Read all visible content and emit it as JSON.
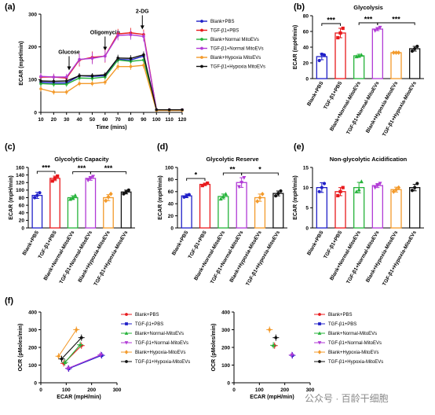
{
  "colors": {
    "blank_pbs": "#2020c8",
    "tgf_pbs": "#e8191c",
    "blank_normal": "#25b33a",
    "tgf_normal": "#b13ad6",
    "blank_hypoxia": "#f39a2b",
    "tgf_hypoxia": "#111111"
  },
  "watermark": "公众号 · 百龄干细胞",
  "chart_data": [
    {
      "id": "a",
      "panel": "(a)",
      "type": "line",
      "xlabel": "Time (mins)",
      "ylabel": "ECAR (mpH/min)",
      "xlim": [
        10,
        120
      ],
      "ylim": [
        0,
        300
      ],
      "xticks": [
        10,
        20,
        30,
        40,
        50,
        60,
        70,
        80,
        90,
        100,
        110,
        120
      ],
      "yticks": [
        0,
        100,
        200,
        300
      ],
      "x": [
        10,
        20,
        30,
        40,
        50,
        60,
        70,
        80,
        90,
        100,
        110,
        120
      ],
      "annotations": [
        {
          "text": "Glucose",
          "x": 32,
          "y": 150
        },
        {
          "text": "Oligomycin",
          "x": 60,
          "y": 210
        },
        {
          "text": "2-DG",
          "x": 89,
          "y": 275
        }
      ],
      "series": [
        {
          "name": "Blank+PBS",
          "color": "#2020c8",
          "values": [
            92,
            90,
            90,
            112,
            110,
            112,
            162,
            160,
            172,
            8,
            8,
            8
          ],
          "err": [
            8,
            8,
            8,
            8,
            8,
            8,
            10,
            10,
            10,
            3,
            3,
            3
          ]
        },
        {
          "name": "TGF-β1+PBS",
          "color": "#e8191c",
          "values": [
            108,
            108,
            105,
            160,
            168,
            172,
            240,
            243,
            238,
            8,
            8,
            8
          ],
          "err": [
            10,
            10,
            10,
            20,
            18,
            20,
            15,
            15,
            15,
            3,
            3,
            3
          ]
        },
        {
          "name": "Blank+Normal MitoEVs",
          "color": "#25b33a",
          "values": [
            88,
            86,
            86,
            105,
            104,
            108,
            160,
            156,
            160,
            7,
            7,
            7
          ],
          "err": [
            8,
            8,
            8,
            8,
            8,
            8,
            10,
            10,
            10,
            3,
            3,
            3
          ]
        },
        {
          "name": "TGF-β1+Normal MitoEVs",
          "color": "#b13ad6",
          "values": [
            110,
            108,
            108,
            162,
            165,
            172,
            235,
            237,
            232,
            8,
            8,
            8
          ],
          "err": [
            10,
            10,
            10,
            18,
            18,
            18,
            15,
            15,
            15,
            3,
            3,
            3
          ]
        },
        {
          "name": "Blank+Hypoxia MitoEVs",
          "color": "#f39a2b",
          "values": [
            72,
            62,
            62,
            88,
            88,
            92,
            140,
            140,
            144,
            6,
            6,
            6
          ],
          "err": [
            8,
            8,
            8,
            8,
            8,
            8,
            10,
            10,
            10,
            3,
            3,
            3
          ]
        },
        {
          "name": "TGF-β1+Hypoxia MitoEVs",
          "color": "#111111",
          "values": [
            96,
            95,
            96,
            112,
            112,
            115,
            166,
            165,
            176,
            8,
            8,
            8
          ],
          "err": [
            8,
            8,
            8,
            8,
            8,
            8,
            10,
            10,
            10,
            3,
            3,
            3
          ]
        }
      ]
    },
    {
      "id": "b",
      "panel": "(b)",
      "type": "bar",
      "title": "Glycolysis",
      "ylabel": "ECAR (mpH/min)",
      "ylim": [
        0,
        80
      ],
      "yticks": [
        0,
        20,
        40,
        60,
        80
      ],
      "categories": [
        "Blank+PBS",
        "TGF-β1+PBS",
        "Blank+Normal-MitoEVs",
        "TGF-β1+Normal-MitoEVs",
        "Blank+Hypoxia-MitoEVs",
        "TGF-β1+Hypoxia-MitoEVs"
      ],
      "values": [
        28,
        58,
        29,
        63,
        33,
        38
      ],
      "err": [
        4,
        6,
        2,
        2,
        0.5,
        3
      ],
      "points": [
        [
          23,
          31,
          30
        ],
        [
          52,
          58,
          64
        ],
        [
          28,
          29,
          30
        ],
        [
          61,
          63,
          65
        ],
        [
          33,
          33,
          33
        ],
        [
          35,
          38,
          41
        ]
      ],
      "significance": [
        {
          "from": 0,
          "to": 1,
          "label": "***"
        },
        {
          "from": 2,
          "to": 3,
          "label": "***"
        },
        {
          "from": 3,
          "to": 5,
          "label": "***"
        }
      ]
    },
    {
      "id": "c",
      "panel": "(c)",
      "type": "bar",
      "title": "Glycolytic Capacity",
      "ylabel": "ECAR (mpH/min)",
      "ylim": [
        0,
        160
      ],
      "yticks": [
        0,
        20,
        40,
        60,
        80,
        100,
        120,
        140,
        160
      ],
      "categories": [
        "Blank+PBS",
        "TGF-β1+PBS",
        "Blank+Normal-MitoEVs",
        "TGF-β1+Normal-MitoEVs",
        "Blank+Hypoxia-MitoEVs",
        "TGF-β1+Hypoxia-MitoEVs"
      ],
      "values": [
        86,
        131,
        80,
        131,
        80,
        95
      ],
      "err": [
        8,
        6,
        5,
        5,
        8,
        5
      ],
      "points": [
        [
          80,
          86,
          93
        ],
        [
          124,
          131,
          137
        ],
        [
          76,
          80,
          86
        ],
        [
          126,
          131,
          136
        ],
        [
          72,
          82,
          90
        ],
        [
          90,
          95,
          100
        ]
      ],
      "significance": [
        {
          "from": 0,
          "to": 1,
          "label": "***"
        },
        {
          "from": 2,
          "to": 3,
          "label": "***"
        },
        {
          "from": 3,
          "to": 5,
          "label": "***"
        }
      ]
    },
    {
      "id": "d",
      "panel": "(d)",
      "type": "bar",
      "title": "Glycolytic Reserve",
      "ylabel": "ECAR (mpH/min)",
      "ylim": [
        0,
        100
      ],
      "yticks": [
        0,
        20,
        40,
        60,
        80,
        100
      ],
      "categories": [
        "Blank+PBS",
        "TGF-β1+PBS",
        "Blank+Normal-MitoEVs",
        "TGF-β1+Normal-MitoEVs",
        "Blank+Hypoxia-MitoEVs",
        "TGF-β1+Hypoxia-MitoEVs"
      ],
      "values": [
        53,
        72,
        52,
        75,
        50,
        57
      ],
      "err": [
        3,
        2,
        4,
        8,
        6,
        4
      ],
      "points": [
        [
          51,
          53,
          55
        ],
        [
          70,
          72,
          74
        ],
        [
          48,
          52,
          56
        ],
        [
          68,
          75,
          83
        ],
        [
          44,
          50,
          56
        ],
        [
          53,
          57,
          61
        ]
      ],
      "significance": [
        {
          "from": 0,
          "to": 1,
          "label": "*"
        },
        {
          "from": 2,
          "to": 3,
          "label": "**"
        },
        {
          "from": 3,
          "to": 5,
          "label": "*"
        }
      ]
    },
    {
      "id": "e",
      "panel": "(e)",
      "type": "bar",
      "title": "Non-glycolytic Acidification",
      "ylabel": "ECAR (mpH/min)",
      "ylim": [
        0,
        15
      ],
      "yticks": [
        0,
        5,
        10,
        15
      ],
      "categories": [
        "Blank+PBS",
        "TGF-β1+PBS",
        "Blank+Normal-MitoEVs",
        "TGF-β1+Normal-MitoEVs",
        "Blank+Hypoxia-MitoEVs",
        "TGF-β1+Hypoxia-MitoEVs"
      ],
      "values": [
        10,
        9,
        10,
        10.5,
        9.5,
        10
      ],
      "err": [
        1.2,
        1.0,
        1.3,
        0.5,
        0.6,
        0.8
      ],
      "points": [
        [
          9,
          10,
          11
        ],
        [
          8,
          9,
          10
        ],
        [
          9,
          9.5,
          11.5
        ],
        [
          10,
          10.5,
          11
        ],
        [
          9,
          9.5,
          10
        ],
        [
          9.3,
          10,
          11
        ]
      ],
      "significance": []
    },
    {
      "id": "f1",
      "panel": "(f)",
      "type": "scatter",
      "xlabel": "ECAR (mpH/min)",
      "ylabel": "OCR (pMoles/min)",
      "xlim": [
        0,
        300
      ],
      "ylim": [
        0,
        400
      ],
      "xticks": [
        0,
        100,
        200,
        300
      ],
      "yticks": [
        0,
        100,
        200,
        300,
        400
      ],
      "legend": [
        "Blank+PBS",
        "TGF-β1+PBS",
        "Blank+Normal-MitoEVs",
        "TGF-β1+Normal-MitoEVs",
        "Blank+Hypoxia-MitoEVs",
        "TGF-β1+Hypoxia-MitoEVs"
      ],
      "series": [
        {
          "name": "Blank+PBS",
          "color": "#e8191c",
          "points": [
            [
              90,
              110
            ],
            [
              160,
              210
            ]
          ]
        },
        {
          "name": "TGF-β1+PBS",
          "color": "#2020c8",
          "points": [
            [
              110,
              80
            ],
            [
              240,
              155
            ]
          ]
        },
        {
          "name": "Blank+Normal-MitoEVs",
          "color": "#25b33a",
          "points": [
            [
              95,
              115
            ],
            [
              155,
              215
            ]
          ]
        },
        {
          "name": "TGF-β1+Normal-MitoEVs",
          "color": "#b13ad6",
          "points": [
            [
              108,
              82
            ],
            [
              236,
              158
            ]
          ]
        },
        {
          "name": "Blank+Hypoxia-MitoEVs",
          "color": "#f39a2b",
          "points": [
            [
              70,
              150
            ],
            [
              140,
              300
            ]
          ]
        },
        {
          "name": "TGF-β1+Hypoxia-MitoEVs",
          "color": "#111111",
          "points": [
            [
              82,
              135
            ],
            [
              160,
              255
            ]
          ]
        }
      ]
    },
    {
      "id": "f2",
      "panel": "",
      "type": "scatter",
      "xlabel": "ECAR (mpH/min)",
      "ylabel": "OCR (pMoles/min)",
      "xlim": [
        0,
        300
      ],
      "ylim": [
        0,
        400
      ],
      "xticks": [
        0,
        100,
        200,
        300
      ],
      "yticks": [
        0,
        100,
        200,
        300,
        400
      ],
      "legend": [
        "Blank+PBS",
        "TGF-β1+PBS",
        "Blank+Normal-MitoEVs",
        "TGF-β1+Normal-MitoEVs",
        "Blank+Hypoxia-MitoEVs",
        "TGF-β1+Hypoxia-MitoEVs"
      ],
      "series": [
        {
          "name": "Blank+PBS",
          "color": "#e8191c",
          "points": [
            [
              160,
              210
            ]
          ]
        },
        {
          "name": "TGF-β1+PBS",
          "color": "#2020c8",
          "points": [
            [
              230,
              155
            ]
          ]
        },
        {
          "name": "Blank+Normal-MitoEVs",
          "color": "#25b33a",
          "points": [
            [
              155,
              212
            ]
          ]
        },
        {
          "name": "TGF-β1+Normal-MitoEVs",
          "color": "#b13ad6",
          "points": [
            [
              228,
              157
            ]
          ]
        },
        {
          "name": "Blank+Hypoxia-MitoEVs",
          "color": "#f39a2b",
          "points": [
            [
              140,
              300
            ]
          ]
        },
        {
          "name": "TGF-β1+Hypoxia-MitoEVs",
          "color": "#111111",
          "points": [
            [
              165,
              255
            ]
          ]
        }
      ]
    }
  ]
}
